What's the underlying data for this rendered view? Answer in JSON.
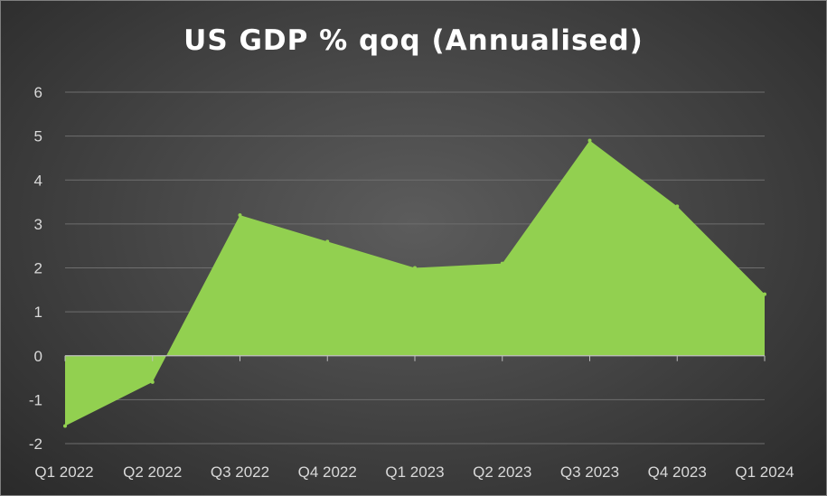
{
  "chart_data": {
    "type": "area",
    "title": "US GDP % qoq (Annualised)",
    "xlabel": "",
    "ylabel": "",
    "categories": [
      "Q1 2022",
      "Q2 2022",
      "Q3 2022",
      "Q4 2022",
      "Q1 2023",
      "Q2 2023",
      "Q3 2023",
      "Q4 2023",
      "Q1 2024"
    ],
    "values": [
      -1.6,
      -0.6,
      3.2,
      2.6,
      2.0,
      2.1,
      4.9,
      3.4,
      1.4
    ],
    "ylim": [
      -2,
      6
    ],
    "yticks": [
      "-2",
      "-1",
      "0",
      "1",
      "2",
      "3",
      "4",
      "5",
      "6"
    ],
    "grid": true,
    "legend": "none",
    "colors": {
      "fill": "#92d050",
      "gridline": "#6e6e6e",
      "axis": "#bfbfbf",
      "text": "#d9d9d9",
      "title": "#ffffff"
    }
  }
}
